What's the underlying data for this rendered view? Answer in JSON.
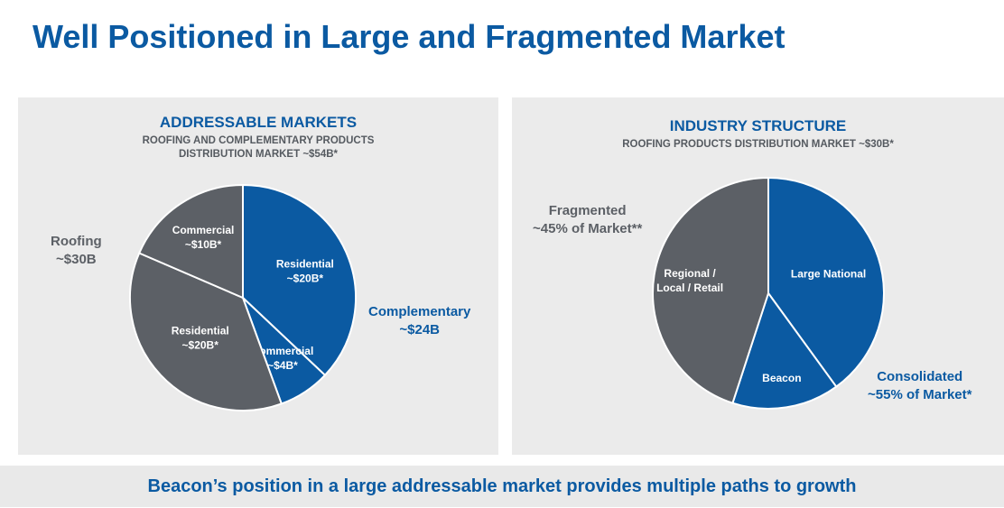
{
  "title": "Well Positioned in Large and Fragmented Market",
  "footer": "Beacon’s position in a large addressable market provides multiple paths to growth",
  "colors": {
    "blue": "#0b5aa2",
    "gray": "#5c6066",
    "panel_bg": "#ebebeb"
  },
  "chart_data": [
    {
      "type": "pie",
      "title": "ADDRESSABLE MARKETS",
      "subtitle_lines": [
        "ROOFING AND COMPLEMENTARY PRODUCTS",
        "DISTRIBUTION MARKET ~$54B*"
      ],
      "slices": [
        {
          "label_lines": [
            "Residential",
            "~$20B*"
          ],
          "value": 20,
          "color": "#0b5aa2",
          "group": "Complementary"
        },
        {
          "label_lines": [
            "Commercial",
            "~$4B*"
          ],
          "value": 4,
          "color": "#0b5aa2",
          "group": "Complementary"
        },
        {
          "label_lines": [
            "Residential",
            "~$20B*"
          ],
          "value": 20,
          "color": "#5c6066",
          "group": "Roofing"
        },
        {
          "label_lines": [
            "Commercial",
            "~$10B*"
          ],
          "value": 10,
          "color": "#5c6066",
          "group": "Roofing"
        }
      ],
      "group_labels": [
        {
          "name": "Roofing",
          "lines": [
            "Roofing",
            "~$30B"
          ],
          "color": "#5c6066"
        },
        {
          "name": "Complementary",
          "lines": [
            "Complementary",
            "~$24B"
          ],
          "color": "#0b5aa2"
        }
      ]
    },
    {
      "type": "pie",
      "title": "INDUSTRY STRUCTURE",
      "subtitle_lines": [
        "ROOFING PRODUCTS DISTRIBUTION MARKET ~$30B*"
      ],
      "slices": [
        {
          "label_lines": [
            "Large National"
          ],
          "value": 40,
          "color": "#0b5aa2",
          "group": "Consolidated"
        },
        {
          "label_lines": [
            "Beacon"
          ],
          "value": 15,
          "color": "#0b5aa2",
          "group": "Consolidated"
        },
        {
          "label_lines": [
            "Regional /",
            "Local / Retail"
          ],
          "value": 45,
          "color": "#5c6066",
          "group": "Fragmented"
        }
      ],
      "group_labels": [
        {
          "name": "Fragmented",
          "lines": [
            "Fragmented",
            "~45% of Market**"
          ],
          "color": "#5c6066"
        },
        {
          "name": "Consolidated",
          "lines": [
            "Consolidated",
            "~55% of Market*"
          ],
          "color": "#0b5aa2"
        }
      ]
    }
  ]
}
